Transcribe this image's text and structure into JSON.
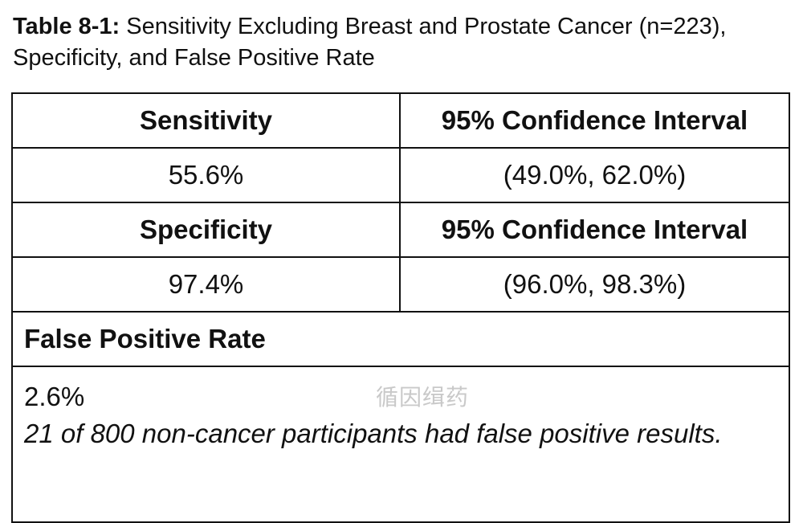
{
  "caption": {
    "label": "Table 8-1:",
    "text": "Sensitivity Excluding Breast and Prostate Cancer (n=223), Specificity, and False Positive Rate"
  },
  "table": {
    "sensitivity": {
      "header": "Sensitivity",
      "value": "55.6%",
      "ci_header": "95% Confidence Interval",
      "ci_value": "(49.0%, 62.0%)"
    },
    "specificity": {
      "header": "Specificity",
      "value": "97.4%",
      "ci_header": "95% Confidence Interval",
      "ci_value": "(96.0%, 98.3%)"
    },
    "false_positive_rate": {
      "header": "False Positive Rate",
      "value": "2.6%",
      "note": "21 of 800 non-cancer participants had false positive results."
    }
  },
  "watermark": "循因缉药"
}
